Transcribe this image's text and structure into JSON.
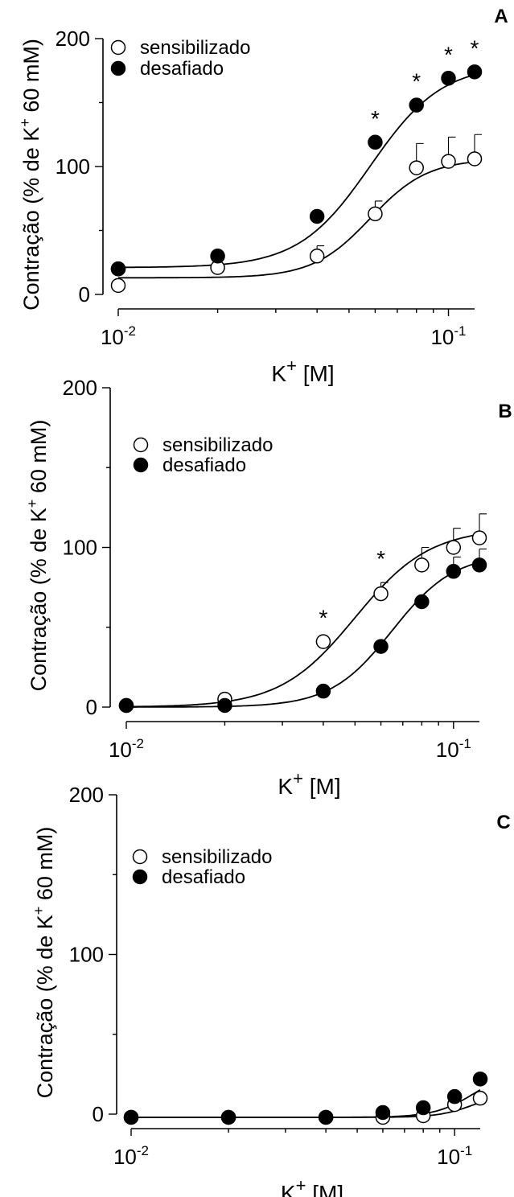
{
  "chart_data": [
    {
      "type": "scatter",
      "panel_label": "A",
      "ylabel": "Contração (% de K+ 60 mM)",
      "xlabel": "K+ [M]",
      "x_scale": "log",
      "ylim": [
        0,
        200
      ],
      "xlim": [
        0.01,
        0.12
      ],
      "yticks": [
        "0",
        "100",
        "200"
      ],
      "xticks": [
        {
          "base": "10",
          "exp": "-2",
          "value": 0.01
        },
        {
          "base": "10",
          "exp": "-1",
          "value": 0.1
        }
      ],
      "legend": [
        "sensibilizado",
        "desafiado"
      ],
      "x": [
        0.01,
        0.02,
        0.04,
        0.06,
        0.08,
        0.1,
        0.12
      ],
      "series": [
        {
          "name": "sensibilizado",
          "marker": "open-circle",
          "values": [
            20,
            21,
            30,
            63,
            99,
            104,
            106
          ],
          "errors": [
            0,
            0,
            8,
            10,
            19,
            19,
            19
          ],
          "extra_points": [
            {
              "x": 0.01,
              "y": 7
            }
          ]
        },
        {
          "name": "desafiado",
          "marker": "filled-circle",
          "values": [
            20,
            30,
            61,
            119,
            148,
            169,
            174
          ],
          "errors": [
            0,
            0,
            0,
            0,
            0,
            0,
            0
          ]
        }
      ],
      "significance": [
        {
          "x": 0.06,
          "label": "*"
        },
        {
          "x": 0.08,
          "label": "*"
        },
        {
          "x": 0.1,
          "label": "*"
        },
        {
          "x": 0.12,
          "label": "*"
        }
      ]
    },
    {
      "type": "scatter",
      "panel_label": "B",
      "ylabel": "Contração (% de K+ 60 mM)",
      "xlabel": "K+ [M]",
      "x_scale": "log",
      "ylim": [
        0,
        200
      ],
      "xlim": [
        0.01,
        0.12
      ],
      "yticks": [
        "0",
        "100",
        "200"
      ],
      "xticks": [
        {
          "base": "10",
          "exp": "-2",
          "value": 0.01
        },
        {
          "base": "10",
          "exp": "-1",
          "value": 0.1
        }
      ],
      "legend": [
        "sensibilizado",
        "desafiado"
      ],
      "x": [
        0.01,
        0.02,
        0.04,
        0.06,
        0.08,
        0.1,
        0.12
      ],
      "series": [
        {
          "name": "sensibilizado",
          "marker": "open-circle",
          "values": [
            1,
            5,
            41,
            71,
            89,
            100,
            106
          ],
          "errors": [
            0,
            0,
            0,
            7,
            11,
            12,
            15
          ]
        },
        {
          "name": "desafiado",
          "marker": "filled-circle",
          "values": [
            1,
            1,
            10,
            38,
            66,
            85,
            89
          ],
          "errors": [
            0,
            0,
            0,
            0,
            0,
            9,
            10
          ]
        }
      ],
      "significance": [
        {
          "x": 0.04,
          "label": "*"
        },
        {
          "x": 0.06,
          "label": "*"
        }
      ]
    },
    {
      "type": "scatter",
      "panel_label": "C",
      "ylabel": "Contração (% de K+ 60 mM)",
      "xlabel": "K+ [M]",
      "x_scale": "log",
      "ylim": [
        0,
        200
      ],
      "xlim": [
        0.01,
        0.12
      ],
      "yticks": [
        "0",
        "100",
        "200"
      ],
      "xticks": [
        {
          "base": "10",
          "exp": "-2",
          "value": 0.01
        },
        {
          "base": "10",
          "exp": "-1",
          "value": 0.1
        }
      ],
      "legend": [
        "sensibilizado",
        "desafiado"
      ],
      "x": [
        0.01,
        0.02,
        0.04,
        0.06,
        0.08,
        0.1,
        0.12
      ],
      "series": [
        {
          "name": "sensibilizado",
          "marker": "open-circle",
          "values": [
            -2,
            -2,
            -2,
            -2,
            -1,
            6,
            10
          ],
          "errors": [
            0,
            0,
            0,
            0,
            0,
            0,
            0
          ]
        },
        {
          "name": "desafiado",
          "marker": "filled-circle",
          "values": [
            -2,
            -2,
            -2,
            1,
            4,
            11,
            22
          ],
          "errors": [
            0,
            0,
            0,
            0,
            0,
            0,
            0
          ]
        }
      ],
      "significance": []
    }
  ]
}
